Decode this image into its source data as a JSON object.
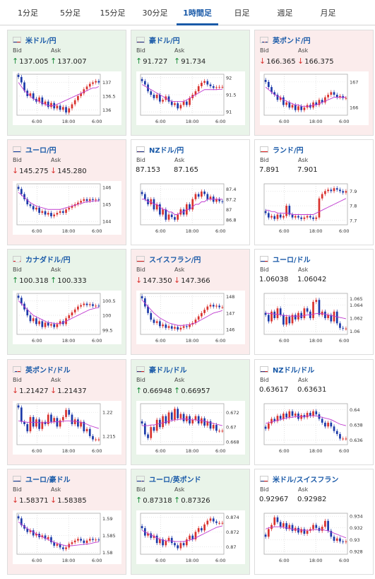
{
  "tabs": [
    "1分足",
    "5分足",
    "15分足",
    "30分足",
    "1時間足",
    "日足",
    "週足",
    "月足"
  ],
  "active_tab": 4,
  "labels": {
    "bid": "Bid",
    "ask": "Ask"
  },
  "colors": {
    "up_arrow": "#1a8c3a",
    "down_arrow": "#d9322e",
    "candle_up": "#d9322e",
    "candle_down": "#1c3aa9",
    "ma": "#c03ad0"
  },
  "cards": [
    {
      "name": "米ドル/円",
      "flag": "flag-us",
      "dir": "up",
      "bid": "137.005",
      "ask": "137.007",
      "yticks": [
        "137",
        "136.5",
        "136"
      ],
      "xticks": [
        "6:00",
        "18:00",
        "6:00"
      ],
      "prices": [
        137.2,
        137.0,
        136.7,
        136.5,
        136.6,
        136.4,
        136.3,
        136.45,
        136.2,
        136.3,
        136.1,
        136.25,
        136.05,
        136.15,
        136.0,
        136.1,
        135.9,
        136.05,
        136.2,
        136.35,
        136.5,
        136.6,
        136.75,
        136.85,
        136.95,
        137.0,
        137.05,
        137.0
      ],
      "ma": [
        137.0,
        136.85,
        136.7,
        136.6,
        136.5,
        136.4,
        136.35,
        136.3,
        136.25,
        136.2,
        136.15,
        136.15,
        136.15,
        136.2,
        136.25,
        136.3,
        136.35,
        136.4,
        136.45,
        136.5,
        136.55,
        136.6,
        136.65,
        136.7,
        136.75,
        136.8,
        136.8,
        136.85
      ],
      "ymin": 135.8,
      "ymax": 137.3,
      "tick_vals": [
        137.0,
        136.5,
        136.0
      ]
    },
    {
      "name": "豪ドル/円",
      "flag": "flag-au",
      "dir": "up",
      "bid": "91.727",
      "ask": "91.734",
      "yticks": [
        "92",
        "91.5",
        "91"
      ],
      "xticks": [
        "6:00",
        "18:00",
        "6:00"
      ],
      "prices": [
        91.9,
        91.8,
        91.6,
        91.5,
        91.4,
        91.5,
        91.3,
        91.35,
        91.45,
        91.3,
        91.2,
        91.25,
        91.1,
        91.2,
        91.3,
        91.2,
        91.4,
        91.5,
        91.6,
        91.75,
        91.85,
        91.9,
        91.8,
        91.75,
        91.7,
        91.72,
        91.73,
        91.73
      ],
      "ma": [
        91.8,
        91.75,
        91.7,
        91.65,
        91.6,
        91.55,
        91.5,
        91.45,
        91.4,
        91.35,
        91.3,
        91.3,
        91.3,
        91.3,
        91.3,
        91.35,
        91.4,
        91.45,
        91.5,
        91.55,
        91.6,
        91.65,
        91.65,
        91.65,
        91.65,
        91.65,
        91.66,
        91.66
      ],
      "ymin": 90.9,
      "ymax": 92.1,
      "tick_vals": [
        92.0,
        91.5,
        91.0
      ]
    },
    {
      "name": "英ポンド/円",
      "flag": "flag-gb",
      "dir": "down",
      "bid": "166.365",
      "ask": "166.375",
      "yticks": [
        "167",
        "166"
      ],
      "xticks": [
        "6:00",
        "18:00",
        "6:00"
      ],
      "prices": [
        167.0,
        166.8,
        166.6,
        166.5,
        166.3,
        166.4,
        166.1,
        166.2,
        166.0,
        166.1,
        165.9,
        166.05,
        165.9,
        166.0,
        166.1,
        166.0,
        166.2,
        166.1,
        166.3,
        166.2,
        166.4,
        166.5,
        166.6,
        166.5,
        166.4,
        166.45,
        166.37,
        166.37
      ],
      "ma": [
        166.8,
        166.7,
        166.6,
        166.5,
        166.45,
        166.4,
        166.3,
        166.25,
        166.2,
        166.15,
        166.1,
        166.1,
        166.05,
        166.05,
        166.05,
        166.05,
        166.1,
        166.1,
        166.15,
        166.2,
        166.25,
        166.3,
        166.35,
        166.4,
        166.4,
        166.4,
        166.4,
        166.4
      ],
      "ymin": 165.7,
      "ymax": 167.3,
      "tick_vals": [
        167.0,
        166.0
      ]
    },
    {
      "name": "ユーロ/円",
      "flag": "flag-eu",
      "dir": "down",
      "bid": "145.275",
      "ask": "145.280",
      "yticks": [
        "146",
        "145",
        "144"
      ],
      "xticks": [
        "6:00",
        "18:00",
        "6:00"
      ],
      "prices": [
        145.9,
        145.6,
        145.3,
        145.0,
        144.9,
        144.7,
        144.8,
        144.5,
        144.6,
        144.4,
        144.5,
        144.3,
        144.4,
        144.5,
        144.6,
        144.5,
        144.7,
        144.8,
        144.9,
        145.0,
        145.1,
        145.2,
        145.3,
        145.2,
        145.3,
        145.25,
        145.28,
        145.27
      ],
      "ma": [
        145.7,
        145.55,
        145.4,
        145.25,
        145.1,
        145.0,
        144.9,
        144.85,
        144.8,
        144.75,
        144.7,
        144.7,
        144.7,
        144.7,
        144.7,
        144.75,
        144.8,
        144.85,
        144.9,
        144.95,
        145.0,
        145.05,
        145.1,
        145.15,
        145.15,
        145.2,
        145.2,
        145.2
      ],
      "ymin": 143.8,
      "ymax": 146.2,
      "tick_vals": [
        146.0,
        145.0,
        144.0
      ]
    },
    {
      "name": "NZドル/円",
      "flag": "flag-nz",
      "dir": "none",
      "bid": "87.153",
      "ask": "87.165",
      "yticks": [
        "87.4",
        "87.2",
        "87",
        "86.8"
      ],
      "xticks": [
        "6:00",
        "18:00",
        "6:00"
      ],
      "prices": [
        87.3,
        87.2,
        87.1,
        87.2,
        87.0,
        87.1,
        86.9,
        87.0,
        86.8,
        86.9,
        86.85,
        86.8,
        86.9,
        87.0,
        86.9,
        87.1,
        87.0,
        87.2,
        87.3,
        87.25,
        87.35,
        87.3,
        87.2,
        87.25,
        87.15,
        87.2,
        87.16,
        87.15
      ],
      "ma": [
        87.2,
        87.2,
        87.15,
        87.15,
        87.1,
        87.1,
        87.05,
        87.0,
        87.0,
        86.95,
        86.95,
        86.9,
        86.9,
        86.95,
        86.95,
        87.0,
        87.0,
        87.05,
        87.1,
        87.1,
        87.15,
        87.15,
        87.2,
        87.2,
        87.2,
        87.2,
        87.2,
        87.2
      ],
      "ymin": 86.7,
      "ymax": 87.5,
      "tick_vals": [
        87.4,
        87.2,
        87.0,
        86.8
      ]
    },
    {
      "name": "ランド/円",
      "flag": "flag-za",
      "dir": "none",
      "bid": "7.891",
      "ask": "7.901",
      "yticks": [
        "7.9",
        "7.8",
        "7.7"
      ],
      "xticks": [
        "6:00",
        "18:00",
        "6:00"
      ],
      "prices": [
        7.75,
        7.72,
        7.73,
        7.71,
        7.74,
        7.72,
        7.73,
        7.8,
        7.74,
        7.72,
        7.73,
        7.72,
        7.71,
        7.72,
        7.73,
        7.72,
        7.71,
        7.72,
        7.85,
        7.88,
        7.9,
        7.91,
        7.9,
        7.92,
        7.91,
        7.9,
        7.89,
        7.9
      ],
      "ma": [
        7.77,
        7.77,
        7.76,
        7.76,
        7.75,
        7.75,
        7.75,
        7.75,
        7.75,
        7.74,
        7.74,
        7.74,
        7.74,
        7.74,
        7.74,
        7.74,
        7.74,
        7.75,
        7.76,
        7.77,
        7.78,
        7.79,
        7.8,
        7.81,
        7.82,
        7.83,
        7.84,
        7.85
      ],
      "ymin": 7.67,
      "ymax": 7.95,
      "tick_vals": [
        7.9,
        7.8,
        7.7
      ]
    },
    {
      "name": "カナダドル/円",
      "flag": "flag-ca",
      "dir": "up",
      "bid": "100.318",
      "ask": "100.333",
      "yticks": [
        "100.5",
        "100",
        "99.5"
      ],
      "xticks": [
        "6:00",
        "18:00",
        "6:00"
      ],
      "prices": [
        100.6,
        100.4,
        100.2,
        100.0,
        99.8,
        99.9,
        99.7,
        99.8,
        99.6,
        99.75,
        99.65,
        99.7,
        99.6,
        99.7,
        99.8,
        99.7,
        99.9,
        100.0,
        100.1,
        100.2,
        100.3,
        100.35,
        100.4,
        100.35,
        100.38,
        100.32,
        100.33,
        100.32
      ],
      "ma": [
        100.5,
        100.4,
        100.3,
        100.2,
        100.1,
        100.0,
        99.95,
        99.9,
        99.85,
        99.8,
        99.75,
        99.75,
        99.72,
        99.72,
        99.72,
        99.75,
        99.8,
        99.85,
        99.9,
        99.95,
        100.0,
        100.05,
        100.1,
        100.15,
        100.2,
        100.22,
        100.25,
        100.27
      ],
      "ymin": 99.35,
      "ymax": 100.75,
      "tick_vals": [
        100.5,
        100.0,
        99.5
      ]
    },
    {
      "name": "スイスフラン/円",
      "flag": "flag-ch",
      "dir": "down",
      "bid": "147.350",
      "ask": "147.366",
      "yticks": [
        "148",
        "147",
        "146"
      ],
      "xticks": [
        "6:00",
        "18:00",
        "6:00"
      ],
      "prices": [
        147.9,
        147.4,
        147.0,
        146.6,
        146.4,
        146.5,
        146.2,
        146.3,
        146.1,
        146.2,
        146.05,
        146.15,
        146.0,
        146.1,
        146.2,
        146.15,
        146.3,
        146.4,
        146.6,
        146.8,
        147.0,
        147.2,
        147.4,
        147.5,
        147.4,
        147.45,
        147.36,
        147.36
      ],
      "ma": [
        147.8,
        147.6,
        147.4,
        147.2,
        147.0,
        146.85,
        146.7,
        146.6,
        146.5,
        146.4,
        146.35,
        146.3,
        146.25,
        146.25,
        146.25,
        146.28,
        146.3,
        146.35,
        146.4,
        146.5,
        146.6,
        146.7,
        146.8,
        146.9,
        147.0,
        147.05,
        147.1,
        147.15
      ],
      "ymin": 145.7,
      "ymax": 148.2,
      "tick_vals": [
        148.0,
        147.0,
        146.0
      ]
    },
    {
      "name": "ユーロ/ドル",
      "flag": "flag-eu-us",
      "dir": "none",
      "bid": "1.06038",
      "ask": "1.06042",
      "yticks": [
        "1.065",
        "1.064",
        "1.062",
        "1.06"
      ],
      "xticks": [
        "6:00",
        "18:00",
        "6:00"
      ],
      "prices": [
        1.0625,
        1.0615,
        1.063,
        1.062,
        1.0635,
        1.0625,
        1.061,
        1.0622,
        1.0612,
        1.0625,
        1.0618,
        1.0628,
        1.062,
        1.0635,
        1.063,
        1.062,
        1.0645,
        1.0648,
        1.0625,
        1.063,
        1.062,
        1.0625,
        1.0615,
        1.063,
        1.0612,
        1.0605,
        1.0604,
        1.0604
      ],
      "ma": [
        1.0628,
        1.0627,
        1.0627,
        1.0626,
        1.0626,
        1.0625,
        1.0624,
        1.0624,
        1.0623,
        1.0623,
        1.0623,
        1.0623,
        1.0623,
        1.0624,
        1.0625,
        1.0625,
        1.0626,
        1.0627,
        1.0627,
        1.0627,
        1.0626,
        1.0625,
        1.0624,
        1.0623,
        1.0622,
        1.0621,
        1.062,
        1.0619
      ],
      "ymin": 1.0595,
      "ymax": 1.0658,
      "tick_vals": [
        1.065,
        1.064,
        1.062,
        1.06
      ]
    },
    {
      "name": "英ポンド/ドル",
      "flag": "flag-gb-us",
      "dir": "down",
      "bid": "1.21427",
      "ask": "1.21437",
      "yticks": [
        "1.22",
        "1.215"
      ],
      "xticks": [
        "6:00",
        "18:00",
        "6:00"
      ],
      "prices": [
        1.221,
        1.218,
        1.2175,
        1.216,
        1.219,
        1.217,
        1.2185,
        1.2165,
        1.218,
        1.2175,
        1.2195,
        1.218,
        1.2188,
        1.217,
        1.2183,
        1.219,
        1.2205,
        1.2195,
        1.2175,
        1.2185,
        1.217,
        1.218,
        1.216,
        1.2165,
        1.215,
        1.2143,
        1.2143,
        1.2143
      ],
      "ma": [
        1.2182,
        1.2181,
        1.218,
        1.2179,
        1.2179,
        1.2179,
        1.2179,
        1.2178,
        1.2178,
        1.2178,
        1.2179,
        1.2179,
        1.218,
        1.218,
        1.218,
        1.2181,
        1.2182,
        1.2182,
        1.2181,
        1.2181,
        1.218,
        1.2179,
        1.2177,
        1.2175,
        1.2172,
        1.217,
        1.2168,
        1.2166
      ],
      "ymin": 1.2132,
      "ymax": 1.2218,
      "tick_vals": [
        1.22,
        1.215
      ]
    },
    {
      "name": "豪ドル/ドル",
      "flag": "flag-au-us",
      "dir": "up",
      "bid": "0.66948",
      "ask": "0.66957",
      "yticks": [
        "0.672",
        "0.67",
        "0.668"
      ],
      "xticks": [
        "6:00",
        "18:00",
        "6:00"
      ],
      "prices": [
        0.6705,
        0.669,
        0.6685,
        0.67,
        0.6695,
        0.671,
        0.67,
        0.6715,
        0.6705,
        0.672,
        0.671,
        0.6725,
        0.6712,
        0.6718,
        0.6708,
        0.6715,
        0.6705,
        0.671,
        0.6715,
        0.6705,
        0.6712,
        0.6702,
        0.6708,
        0.6698,
        0.6703,
        0.6695,
        0.6695,
        0.6695
      ],
      "ma": [
        0.6702,
        0.6702,
        0.6702,
        0.6703,
        0.6703,
        0.6704,
        0.6705,
        0.6706,
        0.6707,
        0.6708,
        0.6709,
        0.671,
        0.671,
        0.6711,
        0.6711,
        0.6711,
        0.671,
        0.671,
        0.671,
        0.6709,
        0.6709,
        0.6708,
        0.6707,
        0.6706,
        0.6705,
        0.6704,
        0.6703,
        0.6702
      ],
      "ymin": 0.6676,
      "ymax": 0.6732,
      "tick_vals": [
        0.672,
        0.67,
        0.668
      ]
    },
    {
      "name": "NZドル/ドル",
      "flag": "flag-nz-us",
      "dir": "none",
      "bid": "0.63617",
      "ask": "0.63631",
      "yticks": [
        "0.64",
        "0.638",
        "0.636"
      ],
      "xticks": [
        "6:00",
        "18:00",
        "6:00"
      ],
      "prices": [
        0.6375,
        0.6382,
        0.6388,
        0.6385,
        0.6392,
        0.6388,
        0.6395,
        0.639,
        0.6398,
        0.6392,
        0.6395,
        0.6388,
        0.6393,
        0.639,
        0.6396,
        0.6392,
        0.6398,
        0.6394,
        0.6388,
        0.6383,
        0.6378,
        0.6383,
        0.6378,
        0.6372,
        0.6368,
        0.6362,
        0.6362,
        0.6362
      ],
      "ma": [
        0.6382,
        0.6383,
        0.6384,
        0.6385,
        0.6386,
        0.6387,
        0.6388,
        0.6389,
        0.639,
        0.639,
        0.6391,
        0.6391,
        0.6391,
        0.6391,
        0.6392,
        0.6392,
        0.6392,
        0.6392,
        0.6391,
        0.639,
        0.6389,
        0.6388,
        0.6387,
        0.6385,
        0.6383,
        0.6381,
        0.638,
        0.6379
      ],
      "ymin": 0.6354,
      "ymax": 0.6408,
      "tick_vals": [
        0.64,
        0.638,
        0.636
      ]
    },
    {
      "name": "ユーロ/豪ドル",
      "flag": "flag-eu-au",
      "dir": "down",
      "bid": "1.58371",
      "ask": "1.58385",
      "yticks": [
        "1.59",
        "1.585",
        "1.58"
      ],
      "xticks": [
        "6:00",
        "18:00",
        "6:00"
      ],
      "prices": [
        1.59,
        1.588,
        1.587,
        1.586,
        1.5865,
        1.585,
        1.5855,
        1.5845,
        1.585,
        1.584,
        1.5845,
        1.583,
        1.582,
        1.5825,
        1.5815,
        1.581,
        1.5815,
        1.5825,
        1.583,
        1.5835,
        1.584,
        1.5835,
        1.5828,
        1.5835,
        1.584,
        1.5837,
        1.5838,
        1.5837
      ],
      "ma": [
        1.589,
        1.5883,
        1.5876,
        1.587,
        1.5865,
        1.586,
        1.5855,
        1.585,
        1.5846,
        1.5842,
        1.5838,
        1.5834,
        1.583,
        1.5827,
        1.5824,
        1.5822,
        1.582,
        1.582,
        1.582,
        1.5821,
        1.5822,
        1.5823,
        1.5824,
        1.5825,
        1.5826,
        1.5828,
        1.583,
        1.5831
      ],
      "ymin": 1.5795,
      "ymax": 1.5915,
      "tick_vals": [
        1.59,
        1.585,
        1.58
      ]
    },
    {
      "name": "ユーロ/英ポンド",
      "flag": "flag-eu-gb",
      "dir": "up",
      "bid": "0.87318",
      "ask": "0.87326",
      "yticks": [
        "0.874",
        "0.872",
        "0.87"
      ],
      "xticks": [
        "6:00",
        "18:00",
        "6:00"
      ],
      "prices": [
        0.8725,
        0.8715,
        0.8718,
        0.8712,
        0.8715,
        0.8705,
        0.871,
        0.8702,
        0.8708,
        0.8712,
        0.8705,
        0.8702,
        0.8698,
        0.8705,
        0.8702,
        0.871,
        0.8715,
        0.871,
        0.872,
        0.8725,
        0.8722,
        0.873,
        0.8735,
        0.8738,
        0.8734,
        0.8732,
        0.8732,
        0.8732
      ],
      "ma": [
        0.8722,
        0.872,
        0.8718,
        0.8716,
        0.8714,
        0.8712,
        0.871,
        0.8709,
        0.8708,
        0.8708,
        0.8708,
        0.8707,
        0.8707,
        0.8707,
        0.8707,
        0.8708,
        0.8709,
        0.871,
        0.8712,
        0.8714,
        0.8716,
        0.8718,
        0.872,
        0.8722,
        0.8724,
        0.8726,
        0.8727,
        0.8728
      ],
      "ymin": 0.869,
      "ymax": 0.8745,
      "tick_vals": [
        0.874,
        0.872,
        0.87
      ]
    },
    {
      "name": "米ドル/スイスフラン",
      "flag": "flag-us-ch",
      "dir": "none",
      "bid": "0.92967",
      "ask": "0.92982",
      "yticks": [
        "0.934",
        "0.932",
        "0.93",
        "0.928"
      ],
      "xticks": [
        "6:00",
        "18:00",
        "6:00"
      ],
      "prices": [
        0.9305,
        0.9318,
        0.9325,
        0.9338,
        0.933,
        0.9322,
        0.9328,
        0.9318,
        0.9325,
        0.9315,
        0.932,
        0.9312,
        0.9318,
        0.931,
        0.9315,
        0.9318,
        0.9325,
        0.932,
        0.9315,
        0.9322,
        0.9332,
        0.9315,
        0.9305,
        0.9298,
        0.9302,
        0.9297,
        0.9296,
        0.9297
      ],
      "ma": [
        0.9318,
        0.932,
        0.9321,
        0.9322,
        0.9322,
        0.9322,
        0.9321,
        0.932,
        0.9319,
        0.9318,
        0.9317,
        0.9317,
        0.9316,
        0.9316,
        0.9316,
        0.9316,
        0.9317,
        0.9317,
        0.9317,
        0.9317,
        0.9316,
        0.9315,
        0.9313,
        0.9311,
        0.9309,
        0.9307,
        0.9305,
        0.9303
      ],
      "ymin": 0.9275,
      "ymax": 0.9345,
      "tick_vals": [
        0.934,
        0.932,
        0.93,
        0.928
      ]
    }
  ]
}
